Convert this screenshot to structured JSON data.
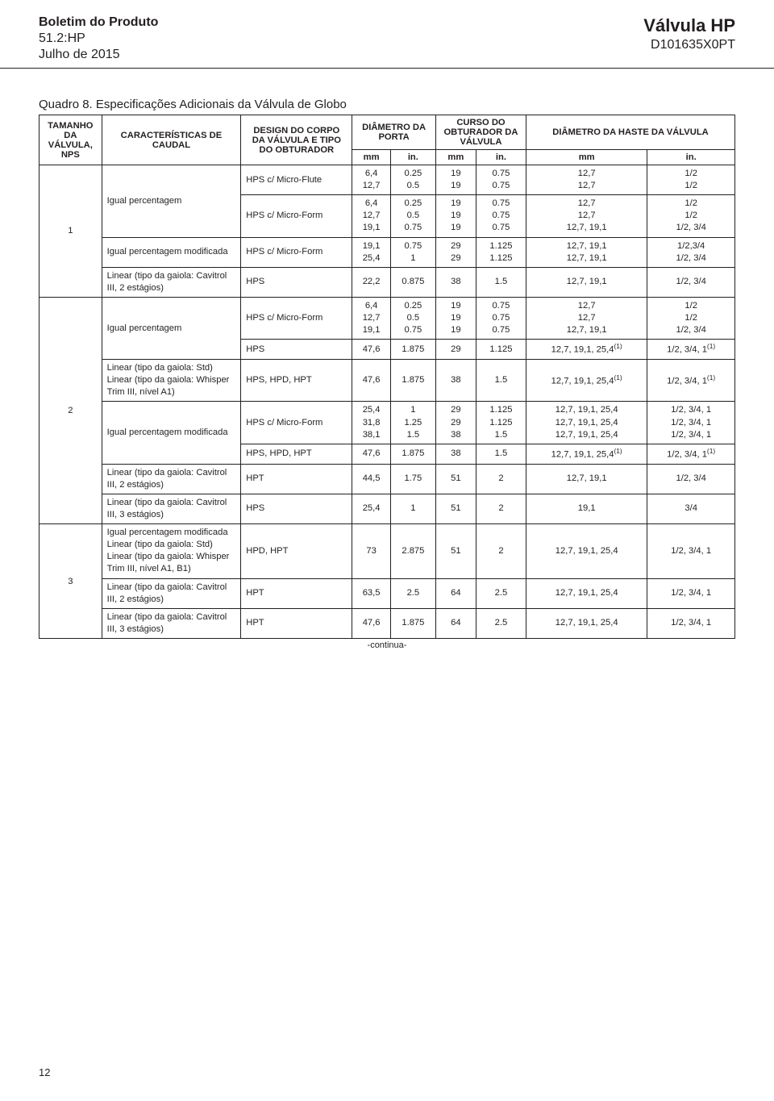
{
  "header": {
    "left_line1_bold": "Boletim do Produto",
    "left_line2": "51.2:HP",
    "left_line3": "Julho de 2015",
    "right_line1_big": "Válvula HP",
    "right_line2": "D101635X0PT"
  },
  "table": {
    "title": "Quadro 8. Especificações Adicionais da Válvula de Globo",
    "cols": {
      "c1": "TAMANHO DA VÁLVULA, NPS",
      "c2": "CARACTERÍSTICAS DE CAUDAL",
      "c3": "DESIGN DO CORPO DA VÁLVULA E TIPO DO OBTURADOR",
      "c4": "DIÂMETRO DA PORTA",
      "c5": "CURSO DO OBTURADOR DA VÁLVULA",
      "c6": "DIÂMETRO DA HASTE DA VÁLVULA",
      "mm": "mm",
      "in": "in."
    },
    "rows": [
      {
        "nps": "1",
        "rowspan_nps": 4,
        "carac": "Igual percentagem",
        "rowspan_carac": 2,
        "design": "HPS c/ Micro-Flute",
        "dp_mm": "6,4\n12,7",
        "dp_in": "0.25\n0.5",
        "curso_mm": "19\n19",
        "curso_in": "0.75\n0.75",
        "haste_mm": "12,7\n12,7",
        "haste_in": "1/2\n1/2"
      },
      {
        "design": "HPS c/ Micro-Form",
        "dp_mm": "6,4\n12,7\n19,1",
        "dp_in": "0.25\n0.5\n0.75",
        "curso_mm": "19\n19\n19",
        "curso_in": "0.75\n0.75\n0.75",
        "haste_mm": "12,7\n12,7\n12,7, 19,1",
        "haste_in": "1/2\n1/2\n1/2, 3/4"
      },
      {
        "carac": "Igual percentagem modificada",
        "design": "HPS c/ Micro-Form",
        "dp_mm": "19,1\n25,4",
        "dp_in": "0.75\n1",
        "curso_mm": "29\n29",
        "curso_in": "1.125\n1.125",
        "haste_mm": "12,7, 19,1\n12,7, 19,1",
        "haste_in": "1/2,3/4\n1/2, 3/4"
      },
      {
        "carac": "Linear (tipo da gaiola: Cavitrol III, 2 estágios)",
        "design": "HPS",
        "dp_mm": "22,2",
        "dp_in": "0.875",
        "curso_mm": "38",
        "curso_in": "1.5",
        "haste_mm": "12,7, 19,1",
        "haste_in": "1/2, 3/4"
      },
      {
        "nps": "2",
        "rowspan_nps": 7,
        "carac": "Igual percentagem",
        "rowspan_carac": 2,
        "design": "HPS c/ Micro-Form",
        "dp_mm": "6,4\n12,7\n19,1",
        "dp_in": "0.25\n0.5\n0.75",
        "curso_mm": "19\n19\n19",
        "curso_in": "0.75\n0.75\n0.75",
        "haste_mm": "12,7\n12,7\n12,7, 19,1",
        "haste_in": "1/2\n1/2\n1/2, 3/4"
      },
      {
        "design": "HPS",
        "dp_mm": "47,6",
        "dp_in": "1.875",
        "curso_mm": "29",
        "curso_in": "1.125",
        "haste_mm": "12,7, 19,1, 25,4(1)",
        "haste_in": "1/2, 3/4, 1(1)"
      },
      {
        "carac": "Linear (tipo da gaiola: Std)\nLinear (tipo da gaiola: Whisper Trim III, nível A1)",
        "design": "HPS, HPD, HPT",
        "dp_mm": "47,6",
        "dp_in": "1.875",
        "curso_mm": "38",
        "curso_in": "1.5",
        "haste_mm": "12,7, 19,1, 25,4(1)",
        "haste_in": "1/2, 3/4, 1(1)"
      },
      {
        "carac": "Igual percentagem modificada",
        "rowspan_carac": 2,
        "design": "HPS c/ Micro-Form",
        "dp_mm": "25,4\n31,8\n38,1",
        "dp_in": "1\n1.25\n1.5",
        "curso_mm": "29\n29\n38",
        "curso_in": "1.125\n1.125\n1.5",
        "haste_mm": "12,7, 19,1, 25,4\n12,7, 19,1, 25,4\n12,7, 19,1, 25,4",
        "haste_in": "1/2, 3/4, 1\n1/2, 3/4, 1\n1/2, 3/4, 1"
      },
      {
        "design": "HPS, HPD, HPT",
        "dp_mm": "47,6",
        "dp_in": "1.875",
        "curso_mm": "38",
        "curso_in": "1.5",
        "haste_mm": "12,7, 19,1, 25,4(1)",
        "haste_in": "1/2, 3/4, 1(1)"
      },
      {
        "carac": "Linear (tipo da gaiola: Cavitrol III, 2 estágios)",
        "design": "HPT",
        "dp_mm": "44,5",
        "dp_in": "1.75",
        "curso_mm": "51",
        "curso_in": "2",
        "haste_mm": "12,7, 19,1",
        "haste_in": "1/2, 3/4"
      },
      {
        "carac": "Linear (tipo da gaiola: Cavitrol III, 3 estágios)",
        "design": "HPS",
        "dp_mm": "25,4",
        "dp_in": "1",
        "curso_mm": "51",
        "curso_in": "2",
        "haste_mm": "19,1",
        "haste_in": "3/4"
      },
      {
        "nps": "3",
        "rowspan_nps": 3,
        "carac": "Igual percentagem modificada\nLinear (tipo da gaiola: Std)\nLinear (tipo da gaiola: Whisper Trim III, nível A1, B1)",
        "design": "HPD, HPT",
        "dp_mm": "73",
        "dp_in": "2.875",
        "curso_mm": "51",
        "curso_in": "2",
        "haste_mm": "12,7, 19,1, 25,4",
        "haste_in": "1/2, 3/4, 1"
      },
      {
        "carac": "Linear (tipo da gaiola: Cavitrol III, 2 estágios)",
        "design": "HPT",
        "dp_mm": "63,5",
        "dp_in": "2.5",
        "curso_mm": "64",
        "curso_in": "2.5",
        "haste_mm": "12,7, 19,1, 25,4",
        "haste_in": "1/2, 3/4, 1"
      },
      {
        "carac": "Linear (tipo da gaiola: Cavitrol III, 3 estágios)",
        "design": "HPT",
        "dp_mm": "47,6",
        "dp_in": "1.875",
        "curso_mm": "64",
        "curso_in": "2.5",
        "haste_mm": "12,7, 19,1, 25,4",
        "haste_in": "1/2, 3/4, 1"
      }
    ],
    "continua": "-continua-"
  },
  "page_number": "12"
}
